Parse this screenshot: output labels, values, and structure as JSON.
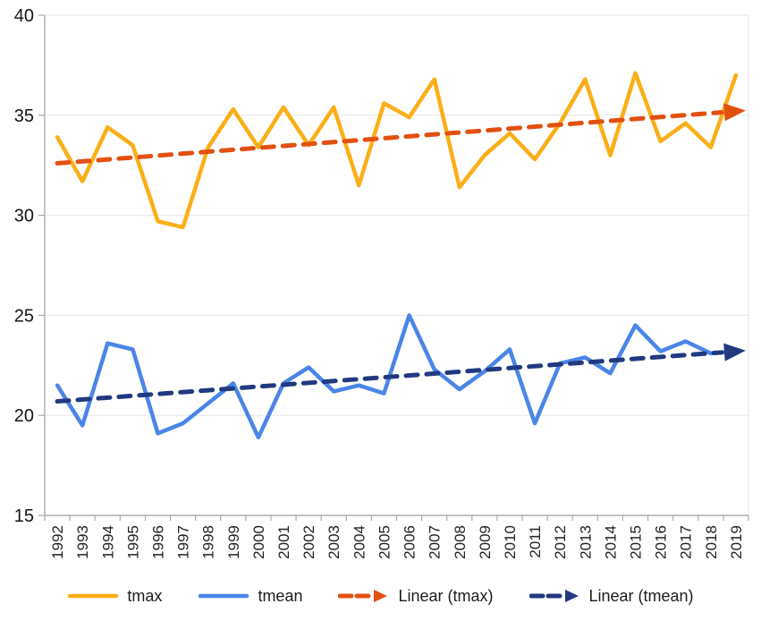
{
  "chart_data": {
    "type": "line",
    "title": "",
    "xlabel": "",
    "ylabel": "",
    "x": [
      1992,
      1993,
      1994,
      1995,
      1996,
      1997,
      1998,
      1999,
      2000,
      2001,
      2002,
      2003,
      2004,
      2005,
      2006,
      2007,
      2008,
      2009,
      2010,
      2011,
      2012,
      2013,
      2014,
      2015,
      2016,
      2017,
      2018,
      2019
    ],
    "ylim": [
      15,
      40
    ],
    "yticks": [
      15,
      20,
      25,
      30,
      35,
      40
    ],
    "grid": true,
    "legend_position": "bottom",
    "series": [
      {
        "name": "tmax",
        "kind": "data",
        "style": "solid",
        "color": "#FBAE17",
        "values": [
          33.9,
          31.7,
          34.4,
          33.5,
          29.7,
          29.4,
          33.4,
          35.3,
          33.4,
          35.4,
          33.5,
          35.4,
          31.5,
          35.6,
          34.9,
          36.8,
          31.4,
          33.0,
          34.1,
          32.8,
          34.6,
          36.8,
          33.0,
          37.1,
          33.7,
          34.6,
          33.4,
          37.0
        ]
      },
      {
        "name": "tmean",
        "kind": "data",
        "style": "solid",
        "color": "#4A85E8",
        "values": [
          21.5,
          19.5,
          23.6,
          23.3,
          19.1,
          19.6,
          20.6,
          21.6,
          18.9,
          21.6,
          22.4,
          21.2,
          21.5,
          21.1,
          25.0,
          22.3,
          21.3,
          22.2,
          23.3,
          19.6,
          22.6,
          22.9,
          22.1,
          24.5,
          23.2,
          23.7,
          23.1,
          23.2
        ]
      },
      {
        "name": "Linear (tmax)",
        "kind": "trendline",
        "style": "dashed-arrow",
        "color": "#E2500F",
        "trend_start": 32.6,
        "trend_end": 35.2
      },
      {
        "name": "Linear (tmean)",
        "kind": "trendline",
        "style": "dashed-arrow",
        "color": "#21397F",
        "trend_start": 20.7,
        "trend_end": 23.2
      }
    ],
    "colors": {
      "gridline": "#E4E7EA",
      "axis": "#A8ADB2",
      "tick_text": "#161616"
    }
  }
}
